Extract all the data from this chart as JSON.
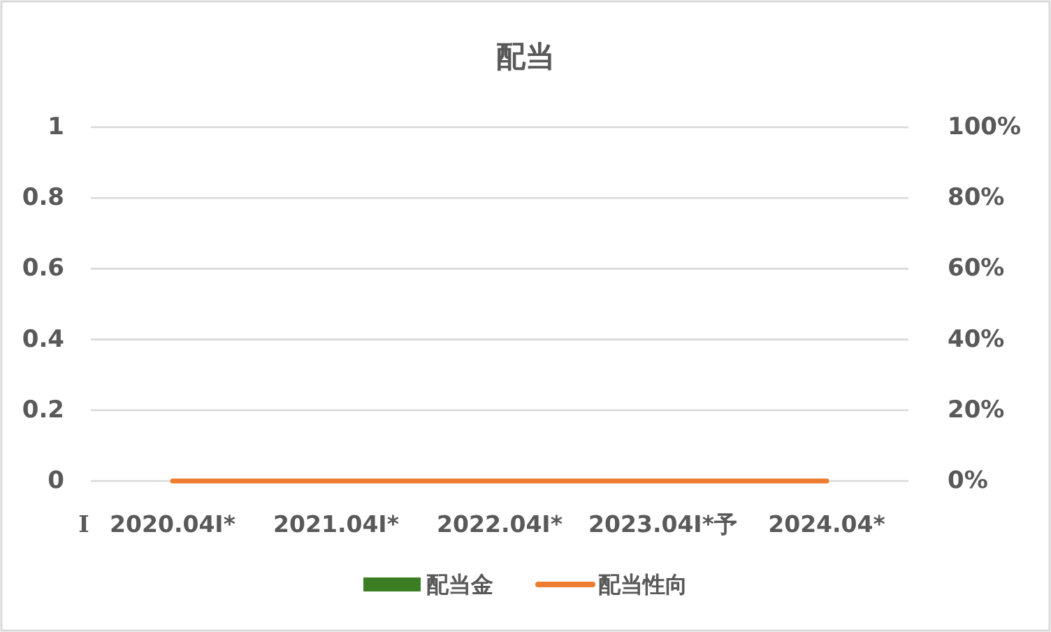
{
  "chart_data": {
    "type": "bar",
    "title": "配当",
    "categories": [
      "2020.04I*",
      "2021.04I*",
      "2022.04I*",
      "2023.04I*予",
      "2024.04*"
    ],
    "series": [
      {
        "name": "配当金",
        "color": "#3b7d23",
        "values": [
          0,
          0,
          0,
          0,
          0
        ]
      },
      {
        "name": "配当性向",
        "type": "line",
        "axis": "y2",
        "color": "#ed7d31",
        "values": [
          0,
          0,
          0,
          0,
          0
        ]
      }
    ],
    "ylim": [
      0,
      1
    ],
    "yticks": [
      0,
      0.2,
      0.4,
      0.6,
      0.8,
      1
    ],
    "y2lim": [
      0,
      100
    ],
    "y2ticks": [
      {
        "value": 0,
        "label": "0%"
      },
      {
        "value": 20,
        "label": "20%"
      },
      {
        "value": 40,
        "label": "40%"
      },
      {
        "value": 60,
        "label": "60%"
      },
      {
        "value": 80,
        "label": "80%"
      },
      {
        "value": 100,
        "label": "100%"
      }
    ],
    "grid": "y",
    "legend": "bottom",
    "annotations": [
      "I"
    ]
  }
}
